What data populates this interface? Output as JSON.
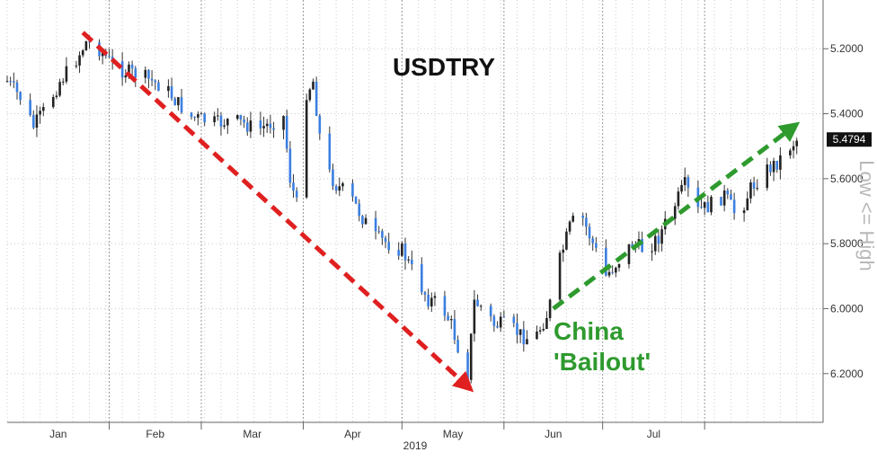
{
  "chart_data": {
    "type": "candlestick",
    "title": "USDTRY",
    "xlabel": "2019",
    "y_axis_label": "Low <= High",
    "y_axis_inverted": true,
    "ylim": [
      5.05,
      6.35
    ],
    "y_ticks": [
      {
        "value": 5.2,
        "label": "5.2000"
      },
      {
        "value": 5.4,
        "label": "5.4000"
      },
      {
        "value": 5.6,
        "label": "5.6000"
      },
      {
        "value": 5.8,
        "label": "5.8000"
      },
      {
        "value": 6.0,
        "label": "6.0000"
      },
      {
        "value": 6.2,
        "label": "6.2000"
      }
    ],
    "month_labels": [
      "Jan",
      "Feb",
      "Mar",
      "Apr",
      "May",
      "Jun",
      "Jul"
    ],
    "last_value": 5.4794,
    "last_value_label": "5.4794",
    "colors": {
      "up": "#3b7fe0",
      "down": "#222222",
      "wick": "#333333",
      "grid": "#cccccc"
    },
    "annotations": [
      {
        "text": "China",
        "color": "#2e9a2e"
      },
      {
        "text": "'Bailout'",
        "color": "#2e9a2e"
      }
    ],
    "trend_arrows": [
      {
        "name": "downtrend",
        "color": "#e02020",
        "from": {
          "day": 23,
          "value": 5.15
        },
        "to": {
          "day": 140,
          "value": 6.24
        }
      },
      {
        "name": "uptrend",
        "color": "#2e9a2e",
        "from": {
          "day": 166,
          "value": 6.0
        },
        "to": {
          "day": 239,
          "value": 5.44
        }
      }
    ],
    "close_series": [
      {
        "day": 0,
        "value": 5.3
      },
      {
        "day": 4,
        "value": 5.35
      },
      {
        "day": 8,
        "value": 5.44
      },
      {
        "day": 12,
        "value": 5.38
      },
      {
        "day": 16,
        "value": 5.3
      },
      {
        "day": 20,
        "value": 5.25
      },
      {
        "day": 24,
        "value": 5.18
      },
      {
        "day": 28,
        "value": 5.2
      },
      {
        "day": 32,
        "value": 5.25
      },
      {
        "day": 36,
        "value": 5.27
      },
      {
        "day": 40,
        "value": 5.28
      },
      {
        "day": 44,
        "value": 5.3
      },
      {
        "day": 48,
        "value": 5.32
      },
      {
        "day": 52,
        "value": 5.37
      },
      {
        "day": 56,
        "value": 5.41
      },
      {
        "day": 60,
        "value": 5.42
      },
      {
        "day": 64,
        "value": 5.43
      },
      {
        "day": 68,
        "value": 5.42
      },
      {
        "day": 72,
        "value": 5.43
      },
      {
        "day": 76,
        "value": 5.45
      },
      {
        "day": 80,
        "value": 5.43
      },
      {
        "day": 84,
        "value": 5.41
      },
      {
        "day": 86,
        "value": 5.6
      },
      {
        "day": 88,
        "value": 5.68
      },
      {
        "day": 90,
        "value": 5.35
      },
      {
        "day": 93,
        "value": 5.3
      },
      {
        "day": 96,
        "value": 5.55
      },
      {
        "day": 100,
        "value": 5.62
      },
      {
        "day": 104,
        "value": 5.65
      },
      {
        "day": 108,
        "value": 5.72
      },
      {
        "day": 112,
        "value": 5.78
      },
      {
        "day": 116,
        "value": 5.8
      },
      {
        "day": 120,
        "value": 5.82
      },
      {
        "day": 124,
        "value": 5.9
      },
      {
        "day": 128,
        "value": 5.97
      },
      {
        "day": 132,
        "value": 5.99
      },
      {
        "day": 135,
        "value": 6.05
      },
      {
        "day": 138,
        "value": 6.15
      },
      {
        "day": 140,
        "value": 6.2
      },
      {
        "day": 142,
        "value": 5.98
      },
      {
        "day": 145,
        "value": 6.0
      },
      {
        "day": 148,
        "value": 6.05
      },
      {
        "day": 152,
        "value": 6.05
      },
      {
        "day": 156,
        "value": 6.08
      },
      {
        "day": 160,
        "value": 6.1
      },
      {
        "day": 164,
        "value": 6.02
      },
      {
        "day": 166,
        "value": 5.95
      },
      {
        "day": 168,
        "value": 5.85
      },
      {
        "day": 171,
        "value": 5.75
      },
      {
        "day": 174,
        "value": 5.7
      },
      {
        "day": 178,
        "value": 5.8
      },
      {
        "day": 182,
        "value": 5.9
      },
      {
        "day": 186,
        "value": 5.85
      },
      {
        "day": 190,
        "value": 5.8
      },
      {
        "day": 194,
        "value": 5.82
      },
      {
        "day": 198,
        "value": 5.78
      },
      {
        "day": 202,
        "value": 5.7
      },
      {
        "day": 206,
        "value": 5.62
      },
      {
        "day": 210,
        "value": 5.7
      },
      {
        "day": 214,
        "value": 5.68
      },
      {
        "day": 218,
        "value": 5.65
      },
      {
        "day": 222,
        "value": 5.72
      },
      {
        "day": 226,
        "value": 5.63
      },
      {
        "day": 230,
        "value": 5.58
      },
      {
        "day": 234,
        "value": 5.55
      },
      {
        "day": 238,
        "value": 5.5
      },
      {
        "day": 240,
        "value": 5.48
      }
    ]
  }
}
